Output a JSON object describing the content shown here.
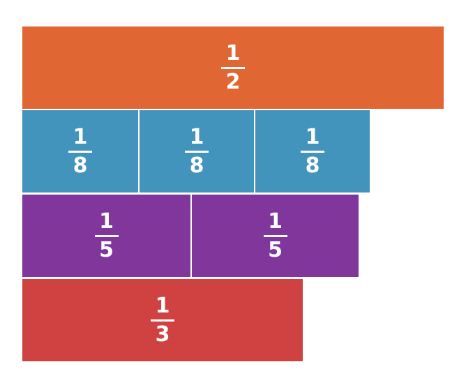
{
  "rows": [
    {
      "name": "half",
      "color": "#E06733",
      "tiles": [
        {
          "numerator": "1",
          "denominator": "2"
        }
      ]
    },
    {
      "name": "eighths",
      "color": "#4394BD",
      "tiles": [
        {
          "numerator": "1",
          "denominator": "8"
        },
        {
          "numerator": "1",
          "denominator": "8"
        },
        {
          "numerator": "1",
          "denominator": "8"
        }
      ]
    },
    {
      "name": "fifths",
      "color": "#80369B",
      "tiles": [
        {
          "numerator": "1",
          "denominator": "5"
        },
        {
          "numerator": "1",
          "denominator": "5"
        }
      ]
    },
    {
      "name": "third",
      "color": "#D04242",
      "tiles": [
        {
          "numerator": "1",
          "denominator": "3"
        }
      ]
    }
  ]
}
